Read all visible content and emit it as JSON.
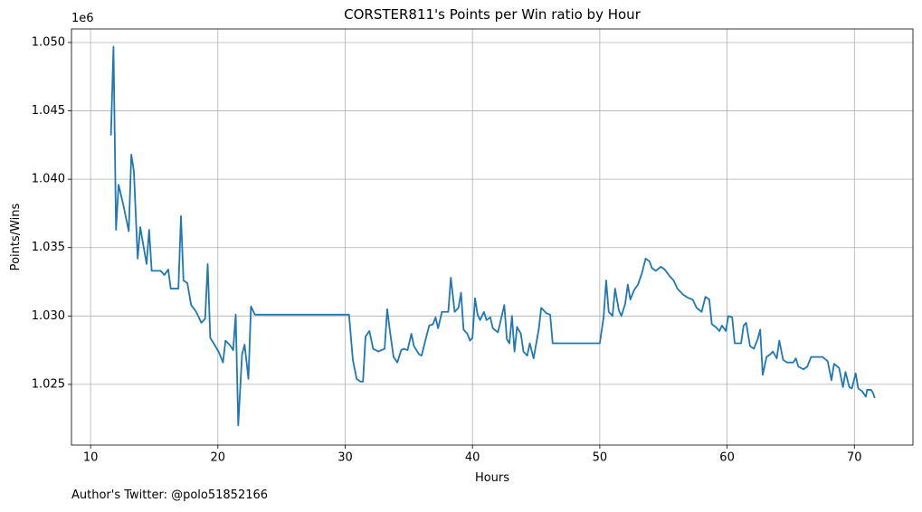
{
  "chart_data": {
    "type": "line",
    "title": "CORSTER811's Points per Win ratio by Hour",
    "x_label": "Hours",
    "y_label": "Points/Wins",
    "y_offset_text": "1e6",
    "footer": "Author's Twitter: @polo51852166",
    "color": "#1f77b4",
    "grid": true,
    "xlim": [
      8.5,
      74.6
    ],
    "ylim": [
      1020560,
      1050990
    ],
    "xticks": [
      10,
      20,
      30,
      40,
      50,
      60,
      70
    ],
    "yticks": [
      {
        "value": 1025000,
        "label": "1.025"
      },
      {
        "value": 1030000,
        "label": "1.030"
      },
      {
        "value": 1035000,
        "label": "1.035"
      },
      {
        "value": 1040000,
        "label": "1.040"
      },
      {
        "value": 1045000,
        "label": "1.045"
      },
      {
        "value": 1050000,
        "label": "1.050"
      }
    ],
    "x": [
      11.6,
      11.8,
      12.0,
      12.2,
      12.6,
      13.0,
      13.2,
      13.4,
      13.7,
      13.9,
      14.4,
      14.6,
      14.8,
      15.5,
      15.8,
      16.1,
      16.3,
      16.9,
      17.1,
      17.3,
      17.6,
      17.9,
      18.3,
      18.7,
      19.0,
      19.2,
      19.4,
      19.8,
      20.1,
      20.4,
      20.6,
      21.0,
      21.2,
      21.4,
      21.6,
      21.9,
      22.1,
      22.4,
      22.6,
      22.9,
      30.3,
      30.6,
      30.9,
      31.2,
      31.4,
      31.6,
      31.9,
      32.2,
      32.6,
      33.1,
      33.3,
      33.5,
      33.8,
      34.1,
      34.4,
      34.6,
      34.9,
      35.2,
      35.4,
      35.8,
      36.0,
      36.3,
      36.6,
      36.9,
      37.1,
      37.3,
      37.6,
      38.1,
      38.3,
      38.6,
      38.9,
      39.1,
      39.3,
      39.6,
      39.8,
      40.0,
      40.2,
      40.4,
      40.6,
      40.9,
      41.1,
      41.4,
      41.6,
      42.0,
      42.5,
      42.7,
      42.9,
      43.1,
      43.3,
      43.5,
      43.8,
      44.0,
      44.3,
      44.5,
      44.8,
      45.2,
      45.4,
      45.8,
      46.1,
      46.3,
      50.0,
      50.3,
      50.5,
      50.7,
      51.0,
      51.2,
      51.5,
      51.7,
      52.0,
      52.2,
      52.4,
      52.7,
      53.0,
      53.3,
      53.6,
      53.9,
      54.1,
      54.4,
      54.8,
      55.1,
      55.5,
      55.8,
      56.1,
      56.5,
      56.8,
      57.0,
      57.3,
      57.6,
      58.0,
      58.3,
      58.6,
      58.8,
      59.1,
      59.4,
      59.6,
      59.9,
      60.1,
      60.4,
      60.6,
      61.1,
      61.3,
      61.5,
      61.8,
      62.1,
      62.4,
      62.6,
      62.8,
      63.1,
      63.4,
      63.6,
      63.9,
      64.1,
      64.4,
      64.7,
      65.2,
      65.4,
      65.6,
      66.0,
      66.3,
      66.6,
      67.5,
      67.9,
      68.2,
      68.4,
      68.8,
      69.1,
      69.3,
      69.6,
      69.8,
      70.1,
      70.3,
      70.6,
      70.9,
      71.0,
      71.3,
      71.45,
      71.6
    ],
    "values": [
      1043200,
      1049700,
      1036300,
      1039600,
      1038000,
      1036200,
      1041800,
      1040600,
      1034200,
      1036500,
      1033800,
      1036300,
      1033300,
      1033300,
      1033000,
      1033400,
      1032000,
      1032000,
      1037300,
      1032600,
      1032400,
      1030800,
      1030300,
      1029500,
      1029800,
      1033800,
      1028400,
      1027800,
      1027300,
      1026600,
      1028200,
      1027800,
      1027500,
      1030100,
      1022000,
      1027200,
      1027900,
      1025400,
      1030700,
      1030100,
      1030100,
      1026800,
      1025400,
      1025200,
      1025200,
      1028500,
      1028900,
      1027600,
      1027400,
      1027600,
      1030500,
      1029000,
      1027000,
      1026600,
      1027500,
      1027600,
      1027500,
      1028700,
      1027800,
      1027200,
      1027100,
      1028200,
      1029300,
      1029400,
      1029900,
      1029100,
      1030300,
      1030300,
      1032800,
      1030300,
      1030600,
      1031700,
      1029000,
      1028700,
      1028200,
      1028400,
      1031300,
      1030100,
      1029700,
      1030300,
      1029700,
      1029900,
      1029100,
      1028800,
      1030800,
      1028300,
      1028000,
      1030000,
      1027400,
      1029200,
      1028700,
      1027400,
      1027100,
      1028000,
      1026900,
      1029000,
      1030600,
      1030200,
      1030100,
      1028000,
      1028000,
      1029900,
      1032600,
      1030300,
      1030000,
      1032000,
      1030400,
      1030000,
      1030900,
      1032300,
      1031200,
      1031900,
      1032300,
      1033100,
      1034200,
      1034000,
      1033500,
      1033300,
      1033600,
      1033400,
      1032900,
      1032600,
      1032000,
      1031600,
      1031400,
      1031300,
      1031200,
      1030600,
      1030300,
      1031400,
      1031200,
      1029400,
      1029200,
      1028900,
      1029300,
      1028900,
      1030000,
      1029900,
      1028000,
      1028000,
      1029300,
      1029500,
      1027800,
      1027600,
      1028300,
      1029000,
      1025700,
      1027000,
      1027200,
      1027400,
      1026900,
      1028200,
      1026800,
      1026600,
      1026600,
      1026900,
      1026300,
      1026100,
      1026300,
      1027000,
      1027000,
      1026700,
      1025300,
      1026500,
      1026200,
      1024800,
      1025900,
      1024800,
      1024700,
      1025800,
      1024700,
      1024500,
      1024100,
      1024600,
      1024600,
      1024400,
      1024000
    ]
  }
}
